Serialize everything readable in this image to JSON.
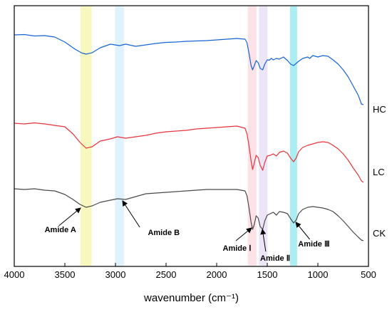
{
  "chart_data": {
    "type": "line",
    "xlabel": "wavenumber (cm⁻¹)",
    "ylabel": "",
    "xlim": [
      4000,
      500
    ],
    "x_reversed": true,
    "y_ticks_shown": false,
    "grid": false,
    "xticks": [
      4000,
      3500,
      3000,
      2500,
      2000,
      1500,
      1000,
      500
    ],
    "bands": [
      {
        "center": 3290,
        "width": 110,
        "color": "#f6f6a8"
      },
      {
        "center": 2960,
        "width": 90,
        "color": "#d4eefc"
      },
      {
        "center": 1650,
        "width": 85,
        "color": "#fbd7df"
      },
      {
        "center": 1540,
        "width": 85,
        "color": "#e6dcf5"
      },
      {
        "center": 1240,
        "width": 70,
        "color": "#8ee8ef"
      }
    ],
    "series": [
      {
        "name": "HC",
        "color": "#1565d6",
        "points": [
          [
            4000,
            49.0
          ],
          [
            3900,
            48.5
          ],
          [
            3800,
            50.5
          ],
          [
            3700,
            50.0
          ],
          [
            3600,
            52.0
          ],
          [
            3500,
            59.0
          ],
          [
            3400,
            69.0
          ],
          [
            3330,
            74.5
          ],
          [
            3290,
            76.0
          ],
          [
            3230,
            74.0
          ],
          [
            3150,
            67.0
          ],
          [
            3050,
            62.0
          ],
          [
            2960,
            64.0
          ],
          [
            2900,
            62.0
          ],
          [
            2800,
            65.0
          ],
          [
            2700,
            63.0
          ],
          [
            2600,
            61.0
          ],
          [
            2500,
            59.5
          ],
          [
            2400,
            59.0
          ],
          [
            2300,
            58.0
          ],
          [
            2200,
            57.5
          ],
          [
            2100,
            57.0
          ],
          [
            2000,
            56.0
          ],
          [
            1900,
            55.0
          ],
          [
            1800,
            54.0
          ],
          [
            1720,
            55.0
          ],
          [
            1700,
            60.0
          ],
          [
            1680,
            75.0
          ],
          [
            1660,
            92.0
          ],
          [
            1645,
            98.0
          ],
          [
            1630,
            93.0
          ],
          [
            1610,
            85.0
          ],
          [
            1590,
            88.0
          ],
          [
            1570,
            96.0
          ],
          [
            1545,
            98.0
          ],
          [
            1525,
            90.0
          ],
          [
            1500,
            84.0
          ],
          [
            1480,
            84.5
          ],
          [
            1460,
            82.0
          ],
          [
            1440,
            84.0
          ],
          [
            1410,
            82.0
          ],
          [
            1380,
            83.0
          ],
          [
            1340,
            80.0
          ],
          [
            1300,
            85.0
          ],
          [
            1270,
            90.0
          ],
          [
            1240,
            92.0
          ],
          [
            1215,
            89.0
          ],
          [
            1190,
            86.0
          ],
          [
            1150,
            82.0
          ],
          [
            1100,
            80.0
          ],
          [
            1080,
            82.0
          ],
          [
            1050,
            78.0
          ],
          [
            1000,
            80.0
          ],
          [
            950,
            78.0
          ],
          [
            900,
            79.0
          ],
          [
            850,
            84.0
          ],
          [
            800,
            90.0
          ],
          [
            750,
            98.0
          ],
          [
            700,
            108.0
          ],
          [
            650,
            121.0
          ],
          [
            600,
            134.0
          ],
          [
            570,
            146.0
          ],
          [
            550,
            147.0
          ]
        ]
      },
      {
        "name": "LC",
        "color": "#e8333a",
        "points": [
          [
            4000,
            173.0
          ],
          [
            3900,
            174.0
          ],
          [
            3800,
            172.5
          ],
          [
            3700,
            174.0
          ],
          [
            3600,
            176.0
          ],
          [
            3500,
            178.0
          ],
          [
            3420,
            188.0
          ],
          [
            3350,
            200.0
          ],
          [
            3290,
            208.0
          ],
          [
            3230,
            206.0
          ],
          [
            3150,
            198.0
          ],
          [
            3050,
            195.0
          ],
          [
            2980,
            192.0
          ],
          [
            2900,
            194.0
          ],
          [
            2800,
            192.0
          ],
          [
            2700,
            190.0
          ],
          [
            2600,
            187.0
          ],
          [
            2500,
            185.0
          ],
          [
            2400,
            184.0
          ],
          [
            2300,
            183.0
          ],
          [
            2200,
            181.0
          ],
          [
            2100,
            180.0
          ],
          [
            2000,
            179.0
          ],
          [
            1900,
            178.0
          ],
          [
            1800,
            177.0
          ],
          [
            1720,
            180.0
          ],
          [
            1700,
            188.0
          ],
          [
            1680,
            205.0
          ],
          [
            1660,
            226.0
          ],
          [
            1645,
            238.0
          ],
          [
            1630,
            230.0
          ],
          [
            1610,
            218.0
          ],
          [
            1590,
            221.0
          ],
          [
            1570,
            232.0
          ],
          [
            1545,
            239.0
          ],
          [
            1525,
            228.0
          ],
          [
            1500,
            219.0
          ],
          [
            1470,
            218.0
          ],
          [
            1440,
            216.0
          ],
          [
            1410,
            219.0
          ],
          [
            1380,
            214.0
          ],
          [
            1340,
            212.0
          ],
          [
            1300,
            215.0
          ],
          [
            1270,
            222.0
          ],
          [
            1240,
            227.0
          ],
          [
            1215,
            222.0
          ],
          [
            1190,
            213.0
          ],
          [
            1150,
            207.0
          ],
          [
            1100,
            204.0
          ],
          [
            1050,
            202.0
          ],
          [
            1000,
            200.0
          ],
          [
            950,
            199.0
          ],
          [
            900,
            200.0
          ],
          [
            850,
            204.0
          ],
          [
            800,
            209.0
          ],
          [
            750,
            216.0
          ],
          [
            700,
            225.0
          ],
          [
            650,
            236.0
          ],
          [
            600,
            246.0
          ],
          [
            570,
            254.0
          ],
          [
            550,
            256.0
          ]
        ]
      },
      {
        "name": "CK",
        "color": "#4a4a4a",
        "points": [
          [
            4000,
            265.0
          ],
          [
            3900,
            266.0
          ],
          [
            3800,
            265.0
          ],
          [
            3700,
            267.0
          ],
          [
            3600,
            268.0
          ],
          [
            3500,
            273.0
          ],
          [
            3420,
            280.0
          ],
          [
            3350,
            287.0
          ],
          [
            3290,
            291.0
          ],
          [
            3230,
            289.0
          ],
          [
            3150,
            284.0
          ],
          [
            3050,
            281.0
          ],
          [
            2980,
            279.0
          ],
          [
            2900,
            280.0
          ],
          [
            2800,
            276.0
          ],
          [
            2700,
            272.0
          ],
          [
            2600,
            271.0
          ],
          [
            2500,
            270.0
          ],
          [
            2400,
            269.0
          ],
          [
            2300,
            268.0
          ],
          [
            2200,
            267.0
          ],
          [
            2100,
            266.0
          ],
          [
            2000,
            266.0
          ],
          [
            1900,
            266.0
          ],
          [
            1800,
            266.0
          ],
          [
            1720,
            268.0
          ],
          [
            1700,
            275.0
          ],
          [
            1680,
            292.0
          ],
          [
            1660,
            312.0
          ],
          [
            1645,
            322.0
          ],
          [
            1630,
            316.0
          ],
          [
            1610,
            303.0
          ],
          [
            1590,
            306.0
          ],
          [
            1570,
            318.0
          ],
          [
            1545,
            322.0
          ],
          [
            1525,
            310.0
          ],
          [
            1500,
            302.0
          ],
          [
            1470,
            300.0
          ],
          [
            1440,
            298.0
          ],
          [
            1410,
            302.0
          ],
          [
            1380,
            297.0
          ],
          [
            1340,
            298.0
          ],
          [
            1300,
            300.0
          ],
          [
            1270,
            307.0
          ],
          [
            1240,
            313.0
          ],
          [
            1215,
            309.0
          ],
          [
            1190,
            300.0
          ],
          [
            1150,
            294.0
          ],
          [
            1100,
            291.0
          ],
          [
            1050,
            290.0
          ],
          [
            1000,
            291.0
          ],
          [
            950,
            292.0
          ],
          [
            900,
            294.0
          ],
          [
            850,
            297.0
          ],
          [
            800,
            303.0
          ],
          [
            750,
            310.0
          ],
          [
            700,
            318.0
          ],
          [
            650,
            326.0
          ],
          [
            600,
            333.0
          ],
          [
            570,
            337.0
          ],
          [
            550,
            338.0
          ]
        ]
      }
    ],
    "series_label_y": [
      158,
      246,
      332
    ],
    "annotations": [
      {
        "label": "Amide A",
        "text_x": 3700,
        "text_y": 326,
        "arrow_from": [
          3560,
          317
        ],
        "arrow_to": [
          3345,
          292
        ]
      },
      {
        "label": "Amide B",
        "text_x": 2680,
        "text_y": 330,
        "arrow_from": [
          2760,
          319
        ],
        "arrow_to": [
          2930,
          282
        ]
      },
      {
        "label": "Amide Ⅰ",
        "text_x": 1940,
        "text_y": 352,
        "arrow_from": [
          1810,
          338
        ],
        "arrow_to": [
          1655,
          320
        ]
      },
      {
        "label": "Amide Ⅱ",
        "text_x": 1570,
        "text_y": 366,
        "arrow_from": [
          1515,
          353
        ],
        "arrow_to": [
          1548,
          322
        ]
      },
      {
        "label": "Amide Ⅲ",
        "text_x": 1195,
        "text_y": 346,
        "arrow_from": [
          1080,
          336
        ],
        "arrow_to": [
          1218,
          312
        ]
      }
    ]
  }
}
